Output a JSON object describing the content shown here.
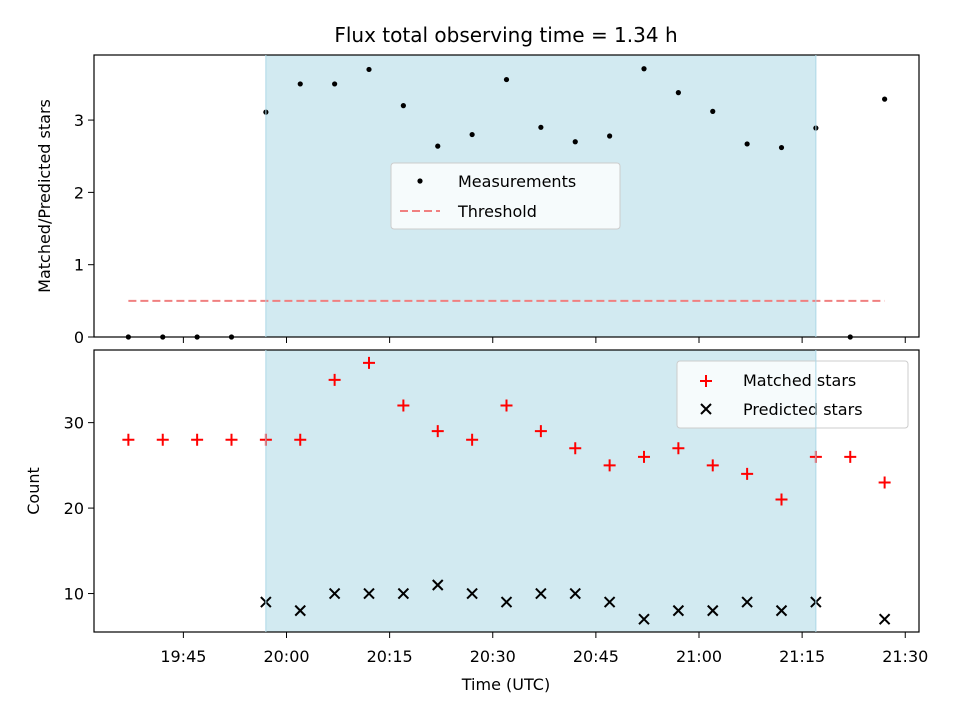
{
  "title": "Flux total observing time = 1.34 h",
  "colors": {
    "measurement": "#000000",
    "threshold": "#f08080",
    "matched": "#ff0000",
    "predicted": "#000000",
    "observing_window": "#add8e6"
  },
  "chart_data": [
    {
      "type": "scatter",
      "ylabel": "Matched/Predicted stars",
      "xlabel": "",
      "xlim": [
        "19:32",
        "21:32"
      ],
      "ylim": [
        0,
        3.9
      ],
      "yticks": [
        0,
        1,
        2,
        3
      ],
      "shaded_window": [
        "19:57",
        "21:17"
      ],
      "legend": {
        "placement": "center",
        "entries": [
          "Measurements",
          "Threshold"
        ]
      },
      "series": [
        {
          "name": "Measurements",
          "marker": "dot",
          "x": [
            "19:37",
            "19:42",
            "19:47",
            "19:52",
            "19:57",
            "20:02",
            "20:07",
            "20:12",
            "20:17",
            "20:22",
            "20:27",
            "20:32",
            "20:37",
            "20:42",
            "20:47",
            "20:52",
            "20:57",
            "21:02",
            "21:07",
            "21:12",
            "21:17",
            "21:22",
            "21:27"
          ],
          "y": [
            0,
            0,
            0,
            0,
            3.11,
            3.5,
            3.5,
            3.7,
            3.2,
            2.64,
            2.8,
            3.56,
            2.9,
            2.7,
            2.78,
            3.71,
            3.38,
            3.12,
            2.67,
            2.62,
            2.89,
            0,
            3.29
          ]
        },
        {
          "name": "Threshold",
          "line": "dashed",
          "x": [
            "19:37",
            "21:27"
          ],
          "y": [
            0.5,
            0.5
          ]
        }
      ]
    },
    {
      "type": "scatter",
      "ylabel": "Count",
      "xlabel": "Time (UTC)",
      "xlim": [
        "19:32",
        "21:32"
      ],
      "ylim": [
        5.5,
        38.5
      ],
      "yticks": [
        10,
        20,
        30
      ],
      "xticks": [
        "19:45",
        "20:00",
        "20:15",
        "20:30",
        "20:45",
        "21:00",
        "21:15",
        "21:30"
      ],
      "shaded_window": [
        "19:57",
        "21:17"
      ],
      "legend": {
        "placement": "top-right",
        "entries": [
          "Matched stars",
          "Predicted stars"
        ]
      },
      "series": [
        {
          "name": "Matched stars",
          "marker": "plus",
          "x": [
            "19:37",
            "19:42",
            "19:47",
            "19:52",
            "19:57",
            "20:02",
            "20:07",
            "20:12",
            "20:17",
            "20:22",
            "20:27",
            "20:32",
            "20:37",
            "20:42",
            "20:47",
            "20:52",
            "20:57",
            "21:02",
            "21:07",
            "21:12",
            "21:17",
            "21:22",
            "21:27"
          ],
          "y": [
            28,
            28,
            28,
            28,
            28,
            28,
            35,
            37,
            32,
            29,
            28,
            32,
            29,
            27,
            25,
            26,
            27,
            25,
            24,
            21,
            26,
            26,
            23
          ]
        },
        {
          "name": "Predicted stars",
          "marker": "x",
          "x": [
            "19:57",
            "20:02",
            "20:07",
            "20:12",
            "20:17",
            "20:22",
            "20:27",
            "20:32",
            "20:37",
            "20:42",
            "20:47",
            "20:52",
            "20:57",
            "21:02",
            "21:07",
            "21:12",
            "21:17",
            "21:27"
          ],
          "y": [
            9,
            8,
            10,
            10,
            10,
            11,
            10,
            9,
            10,
            10,
            9,
            7,
            8,
            8,
            9,
            8,
            9,
            7
          ]
        }
      ]
    }
  ]
}
